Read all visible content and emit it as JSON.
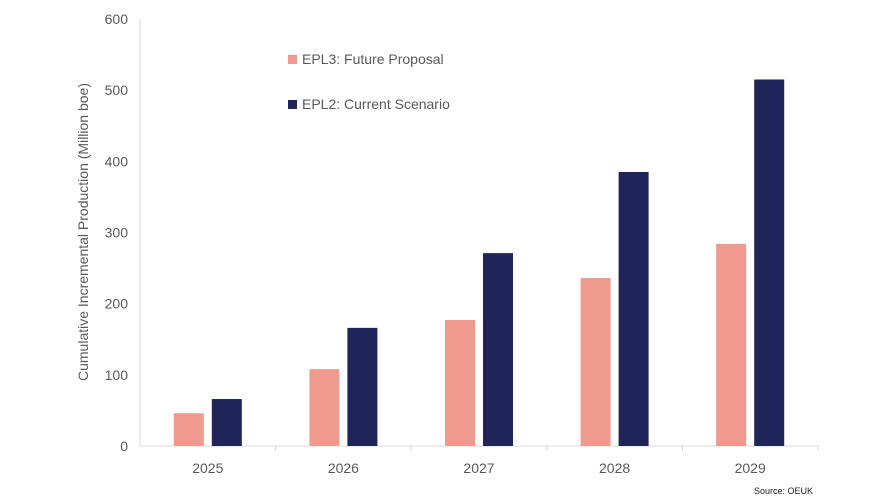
{
  "chart_data": {
    "type": "bar",
    "title": "",
    "xlabel": "",
    "ylabel": "Cumulative Incremental Production (Million boe)",
    "ylim": [
      0,
      600
    ],
    "yticks": [
      0,
      100,
      200,
      300,
      400,
      500,
      600
    ],
    "categories": [
      "2025",
      "2026",
      "2027",
      "2028",
      "2029"
    ],
    "series": [
      {
        "name": "EPL3: Future Proposal",
        "color": "#F0998E",
        "values": [
          46,
          108,
          177,
          236,
          284
        ]
      },
      {
        "name": "EPL2: Current Scenario",
        "color": "#1F2559",
        "values": [
          66,
          166,
          271,
          385,
          515
        ]
      }
    ],
    "legend_position": "top-left (inside plot)",
    "grid": false,
    "source": "Source: OEUK"
  }
}
